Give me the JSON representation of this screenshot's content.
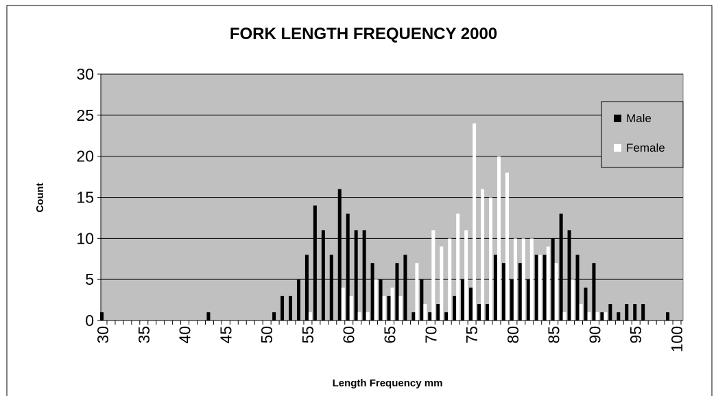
{
  "chart_data": {
    "type": "bar",
    "title": "FORK LENGTH FREQUENCY   2000",
    "x_label": "Length Frequency mm",
    "y_label": "Count",
    "x": [
      30,
      31,
      32,
      33,
      34,
      35,
      36,
      37,
      38,
      39,
      40,
      41,
      42,
      43,
      44,
      45,
      46,
      47,
      48,
      49,
      50,
      51,
      52,
      53,
      54,
      55,
      56,
      57,
      58,
      59,
      60,
      61,
      62,
      63,
      64,
      65,
      66,
      67,
      68,
      69,
      70,
      71,
      72,
      73,
      74,
      75,
      76,
      77,
      78,
      79,
      80,
      81,
      82,
      83,
      84,
      85,
      86,
      87,
      88,
      89,
      90,
      91,
      92,
      93,
      94,
      95,
      96,
      97,
      98,
      99,
      100
    ],
    "series": [
      {
        "name": "Male",
        "color": "#000000",
        "values": [
          1,
          0,
          0,
          0,
          0,
          0,
          0,
          0,
          0,
          0,
          0,
          0,
          0,
          1,
          0,
          0,
          0,
          0,
          0,
          0,
          0,
          1,
          3,
          3,
          5,
          8,
          14,
          11,
          8,
          16,
          13,
          11,
          11,
          7,
          5,
          3,
          7,
          8,
          1,
          5,
          1,
          2,
          1,
          3,
          5,
          4,
          2,
          2,
          8,
          7,
          5,
          7,
          5,
          8,
          8,
          10,
          13,
          11,
          8,
          4,
          7,
          1,
          2,
          1,
          2,
          2,
          2,
          0,
          0,
          1,
          0
        ]
      },
      {
        "name": "Female",
        "color": "#ffffff",
        "values": [
          0,
          0,
          0,
          0,
          0,
          0,
          0,
          0,
          0,
          0,
          0,
          0,
          0,
          0,
          0,
          0,
          0,
          0,
          0,
          0,
          0,
          0,
          0,
          0,
          0,
          1,
          0,
          0,
          0,
          4,
          3,
          1,
          1,
          5,
          3,
          4,
          3,
          0,
          7,
          2,
          11,
          9,
          10,
          13,
          11,
          24,
          16,
          15,
          20,
          18,
          10,
          10,
          10,
          8,
          9,
          7,
          1,
          5,
          2,
          1,
          1,
          1,
          0,
          0,
          0,
          0,
          0,
          0,
          0,
          0,
          0
        ]
      }
    ],
    "xlim": [
      29.75,
      100.75
    ],
    "xticks": [
      30,
      35,
      40,
      45,
      50,
      55,
      60,
      65,
      70,
      75,
      80,
      85,
      90,
      95,
      100
    ],
    "ylim": [
      0,
      30
    ],
    "yticks": [
      0,
      5,
      10,
      15,
      20,
      25,
      30
    ],
    "grid": true,
    "legend": "right"
  }
}
